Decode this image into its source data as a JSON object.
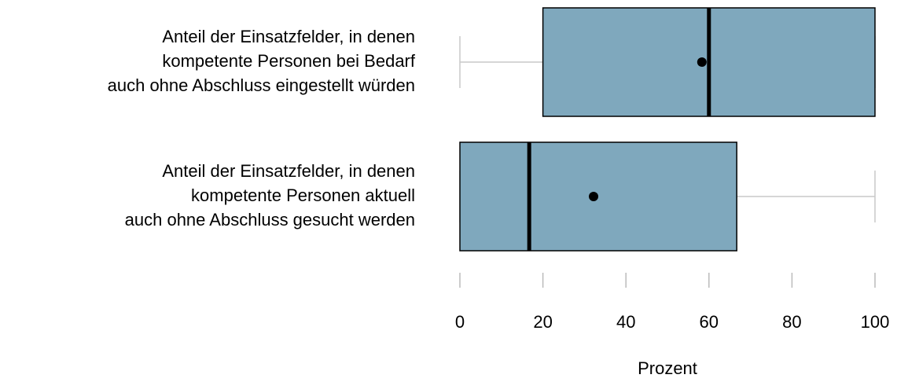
{
  "chart_data": {
    "type": "boxplot",
    "orientation": "horizontal",
    "categories": [
      [
        "Anteil der Einsatzfelder, in denen",
        "kompetente Personen bei Bedarf",
        "auch ohne Abschluss eingestellt würden"
      ],
      [
        "Anteil der Einsatzfelder, in denen",
        "kompetente Personen aktuell",
        "auch ohne Abschluss gesucht werden"
      ]
    ],
    "boxes": [
      {
        "min": 0,
        "q1": 20,
        "median": 60,
        "q3": 100,
        "max": 100,
        "mean": 58.3
      },
      {
        "min": 0,
        "q1": 0,
        "median": 16.7,
        "q3": 66.7,
        "max": 100,
        "mean": 32.2
      }
    ],
    "color": "#7fa8bd",
    "xlim": [
      0,
      100
    ],
    "xticks": [
      0,
      20,
      40,
      60,
      80,
      100
    ],
    "xlabel": "Prozent"
  }
}
